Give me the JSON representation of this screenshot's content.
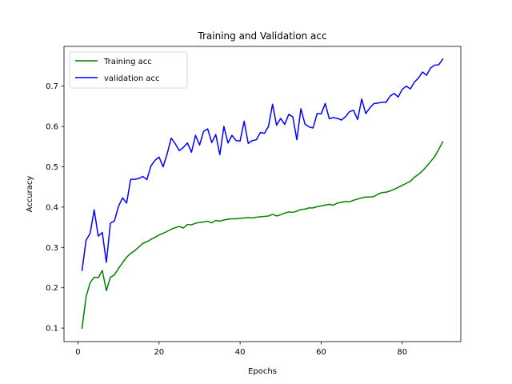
{
  "chart_data": {
    "type": "line",
    "title": "Training and Validation acc",
    "xlabel": "Epochs",
    "ylabel": "Accuracy",
    "xlim": [
      -3.45,
      94.45
    ],
    "ylim": [
      0.0665,
      0.7985
    ],
    "xticks": [
      0,
      20,
      40,
      60,
      80
    ],
    "yticks": [
      0.1,
      0.2,
      0.3,
      0.4,
      0.5,
      0.6,
      0.7
    ],
    "ytick_labels": [
      "0.1",
      "0.2",
      "0.3",
      "0.4",
      "0.5",
      "0.6",
      "0.7"
    ],
    "legend_position": "upper-left",
    "grid": false,
    "series": [
      {
        "name": "Training acc",
        "color": "#008000",
        "x": [
          1,
          2,
          3,
          4,
          5,
          6,
          7,
          8,
          9,
          10,
          11,
          12,
          13,
          14,
          15,
          16,
          17,
          18,
          19,
          20,
          21,
          22,
          23,
          24,
          25,
          26,
          27,
          28,
          29,
          30,
          31,
          32,
          33,
          34,
          35,
          36,
          37,
          38,
          39,
          40,
          41,
          42,
          43,
          44,
          45,
          46,
          47,
          48,
          49,
          50,
          51,
          52,
          53,
          54,
          55,
          56,
          57,
          58,
          59,
          60,
          61,
          62,
          63,
          64,
          65,
          66,
          67,
          68,
          69,
          70,
          71,
          72,
          73,
          74,
          75,
          76,
          77,
          78,
          79,
          80,
          81,
          82,
          83,
          84,
          85,
          86,
          87,
          88,
          89,
          90
        ],
        "values": [
          0.1,
          0.178,
          0.213,
          0.226,
          0.225,
          0.243,
          0.193,
          0.226,
          0.232,
          0.248,
          0.262,
          0.276,
          0.285,
          0.292,
          0.301,
          0.31,
          0.314,
          0.32,
          0.325,
          0.331,
          0.335,
          0.34,
          0.345,
          0.349,
          0.352,
          0.348,
          0.357,
          0.356,
          0.36,
          0.362,
          0.363,
          0.365,
          0.361,
          0.367,
          0.365,
          0.368,
          0.37,
          0.371,
          0.371,
          0.372,
          0.373,
          0.374,
          0.373,
          0.375,
          0.376,
          0.377,
          0.378,
          0.382,
          0.378,
          0.381,
          0.385,
          0.388,
          0.387,
          0.39,
          0.394,
          0.395,
          0.398,
          0.398,
          0.401,
          0.403,
          0.405,
          0.407,
          0.405,
          0.41,
          0.412,
          0.414,
          0.413,
          0.417,
          0.42,
          0.423,
          0.425,
          0.425,
          0.426,
          0.432,
          0.436,
          0.437,
          0.44,
          0.444,
          0.449,
          0.454,
          0.459,
          0.464,
          0.474,
          0.481,
          0.49,
          0.501,
          0.513,
          0.525,
          0.543,
          0.562
        ]
      },
      {
        "name": "validation acc",
        "color": "#0000ff",
        "x": [
          1,
          2,
          3,
          4,
          5,
          6,
          7,
          8,
          9,
          10,
          11,
          12,
          13,
          14,
          15,
          16,
          17,
          18,
          19,
          20,
          21,
          22,
          23,
          24,
          25,
          26,
          27,
          28,
          29,
          30,
          31,
          32,
          33,
          34,
          35,
          36,
          37,
          38,
          39,
          40,
          41,
          42,
          43,
          44,
          45,
          46,
          47,
          48,
          49,
          50,
          51,
          52,
          53,
          54,
          55,
          56,
          57,
          58,
          59,
          60,
          61,
          62,
          63,
          64,
          65,
          66,
          67,
          68,
          69,
          70,
          71,
          72,
          73,
          74,
          75,
          76,
          77,
          78,
          79,
          80,
          81,
          82,
          83,
          84,
          85,
          86,
          87,
          88,
          89,
          90
        ],
        "values": [
          0.243,
          0.318,
          0.335,
          0.393,
          0.328,
          0.337,
          0.263,
          0.36,
          0.366,
          0.402,
          0.423,
          0.41,
          0.469,
          0.469,
          0.471,
          0.476,
          0.468,
          0.502,
          0.516,
          0.524,
          0.5,
          0.532,
          0.571,
          0.557,
          0.54,
          0.548,
          0.559,
          0.536,
          0.578,
          0.554,
          0.588,
          0.594,
          0.56,
          0.58,
          0.53,
          0.6,
          0.559,
          0.578,
          0.565,
          0.564,
          0.613,
          0.558,
          0.565,
          0.567,
          0.585,
          0.583,
          0.6,
          0.655,
          0.603,
          0.62,
          0.605,
          0.63,
          0.624,
          0.567,
          0.644,
          0.606,
          0.599,
          0.596,
          0.632,
          0.631,
          0.657,
          0.619,
          0.622,
          0.62,
          0.616,
          0.624,
          0.637,
          0.64,
          0.617,
          0.668,
          0.632,
          0.646,
          0.657,
          0.658,
          0.66,
          0.66,
          0.675,
          0.682,
          0.673,
          0.692,
          0.7,
          0.693,
          0.71,
          0.72,
          0.735,
          0.727,
          0.745,
          0.752,
          0.753,
          0.767
        ]
      }
    ]
  }
}
